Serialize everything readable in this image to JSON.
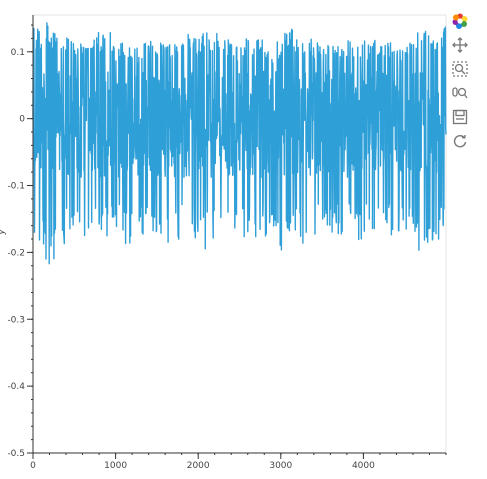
{
  "chart_data": {
    "type": "line",
    "series": [
      {
        "color": "#2f9fd8",
        "x_range": [
          0,
          5000
        ],
        "envelope_x": [
          0,
          100,
          200,
          300,
          400,
          500,
          600,
          700,
          800,
          900,
          1000,
          1100,
          1200,
          1300,
          1400,
          1500,
          1600,
          1700,
          1800,
          1900,
          2000,
          2100,
          2200,
          2300,
          2400,
          2500,
          2600,
          2700,
          2800,
          2900,
          3000,
          3100,
          3200,
          3300,
          3400,
          3500,
          3600,
          3700,
          3800,
          3900,
          4000,
          4100,
          4200,
          4300,
          4400,
          4500,
          4600,
          4700,
          4800,
          4900,
          5000
        ],
        "upper": [
          0.14,
          0.13,
          0.15,
          0.12,
          0.13,
          0.12,
          0.13,
          0.12,
          0.13,
          0.15,
          0.11,
          0.12,
          0.11,
          0.11,
          0.12,
          0.11,
          0.12,
          0.11,
          0.14,
          0.13,
          0.12,
          0.14,
          0.13,
          0.12,
          0.12,
          0.11,
          0.13,
          0.12,
          0.12,
          0.11,
          0.12,
          0.14,
          0.13,
          0.12,
          0.12,
          0.11,
          0.11,
          0.11,
          0.12,
          0.11,
          0.12,
          0.11,
          0.13,
          0.12,
          0.11,
          0.11,
          0.12,
          0.14,
          0.13,
          0.13,
          0.14
        ],
        "lower": [
          -0.18,
          -0.19,
          -0.23,
          -0.2,
          -0.19,
          -0.18,
          -0.18,
          -0.17,
          -0.16,
          -0.18,
          -0.17,
          -0.19,
          -0.19,
          -0.17,
          -0.18,
          -0.17,
          -0.2,
          -0.19,
          -0.18,
          -0.17,
          -0.19,
          -0.2,
          -0.18,
          -0.17,
          -0.19,
          -0.2,
          -0.18,
          -0.19,
          -0.18,
          -0.17,
          -0.21,
          -0.19,
          -0.18,
          -0.2,
          -0.18,
          -0.17,
          -0.17,
          -0.18,
          -0.17,
          -0.19,
          -0.18,
          -0.17,
          -0.17,
          -0.18,
          -0.18,
          -0.19,
          -0.17,
          -0.22,
          -0.19,
          -0.18,
          -0.19
        ]
      }
    ],
    "xlim": [
      0,
      5000
    ],
    "ylim": [
      -0.5,
      0.155
    ],
    "x_ticks": [
      "0",
      "1000",
      "2000",
      "3000",
      "4000"
    ],
    "x_tick_values": [
      0,
      1000,
      2000,
      3000,
      4000
    ],
    "y_ticks": [
      "0.1",
      "0",
      "-0.1",
      "-0.2",
      "-0.3",
      "-0.4",
      "-0.5"
    ],
    "y_tick_values": [
      0.1,
      0,
      -0.1,
      -0.2,
      -0.3,
      -0.4,
      -0.5
    ],
    "ylabel": "y",
    "grid": false,
    "legend": "none"
  },
  "toolbar": {
    "tools": [
      "bokeh-logo-icon",
      "pan-icon",
      "box-zoom-icon",
      "wheel-zoom-icon",
      "save-icon",
      "reset-icon"
    ]
  }
}
